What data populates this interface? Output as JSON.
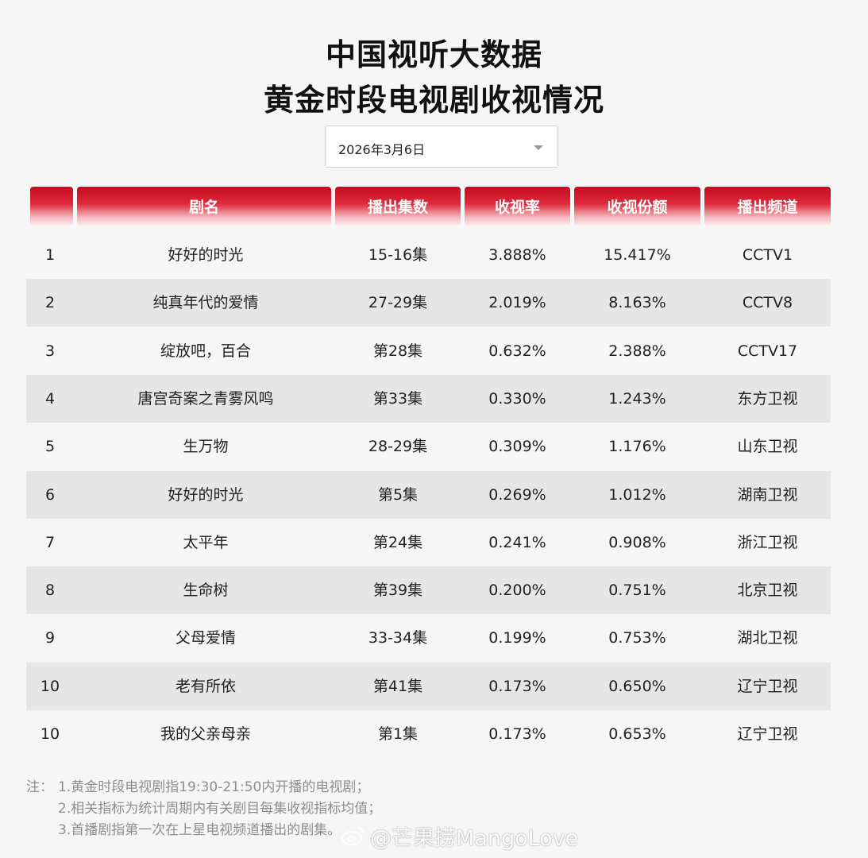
{
  "title": {
    "line1": "中国视听大数据",
    "line2": "黄金时段电视剧收视情况"
  },
  "date_select": {
    "value": "2026年3月6日",
    "icon": "chevron-down-icon"
  },
  "table": {
    "headers": [
      "",
      "剧名",
      "播出集数",
      "收视率",
      "收视份额",
      "播出频道"
    ],
    "rows": [
      {
        "rank": "1",
        "name": "好好的时光",
        "episodes": "15-16集",
        "rating": "3.888%",
        "share": "15.417%",
        "channel": "CCTV1"
      },
      {
        "rank": "2",
        "name": "纯真年代的爱情",
        "episodes": "27-29集",
        "rating": "2.019%",
        "share": "8.163%",
        "channel": "CCTV8"
      },
      {
        "rank": "3",
        "name": "绽放吧，百合",
        "episodes": "第28集",
        "rating": "0.632%",
        "share": "2.388%",
        "channel": "CCTV17"
      },
      {
        "rank": "4",
        "name": "唐宫奇案之青雾风鸣",
        "episodes": "第33集",
        "rating": "0.330%",
        "share": "1.243%",
        "channel": "东方卫视"
      },
      {
        "rank": "5",
        "name": "生万物",
        "episodes": "28-29集",
        "rating": "0.309%",
        "share": "1.176%",
        "channel": "山东卫视"
      },
      {
        "rank": "6",
        "name": "好好的时光",
        "episodes": "第5集",
        "rating": "0.269%",
        "share": "1.012%",
        "channel": "湖南卫视"
      },
      {
        "rank": "7",
        "name": "太平年",
        "episodes": "第24集",
        "rating": "0.241%",
        "share": "0.908%",
        "channel": "浙江卫视"
      },
      {
        "rank": "8",
        "name": "生命树",
        "episodes": "第39集",
        "rating": "0.200%",
        "share": "0.751%",
        "channel": "北京卫视"
      },
      {
        "rank": "9",
        "name": "父母爱情",
        "episodes": "33-34集",
        "rating": "0.199%",
        "share": "0.753%",
        "channel": "湖北卫视"
      },
      {
        "rank": "10",
        "name": "老有所依",
        "episodes": "第41集",
        "rating": "0.173%",
        "share": "0.650%",
        "channel": "辽宁卫视"
      },
      {
        "rank": "10",
        "name": "我的父亲母亲",
        "episodes": "第1集",
        "rating": "0.173%",
        "share": "0.653%",
        "channel": "辽宁卫视"
      }
    ]
  },
  "notes": {
    "prefix": "注：",
    "lines": [
      "1.黄金时段电视剧指19:30-21:50内开播的电视剧；",
      "2.相关指标为统计周期内有关剧目每集收视指标均值；",
      "3.首播剧指第一次在上星电视频道播出的剧集。"
    ]
  },
  "watermark": {
    "text": "@芒果捞MangoLove",
    "icon": "weibo-icon"
  },
  "colors": {
    "header_red": "#c80a1e",
    "alt_row": "#e6e6e6",
    "background": "#f6f6f6",
    "note_text": "#8e8e8e"
  }
}
